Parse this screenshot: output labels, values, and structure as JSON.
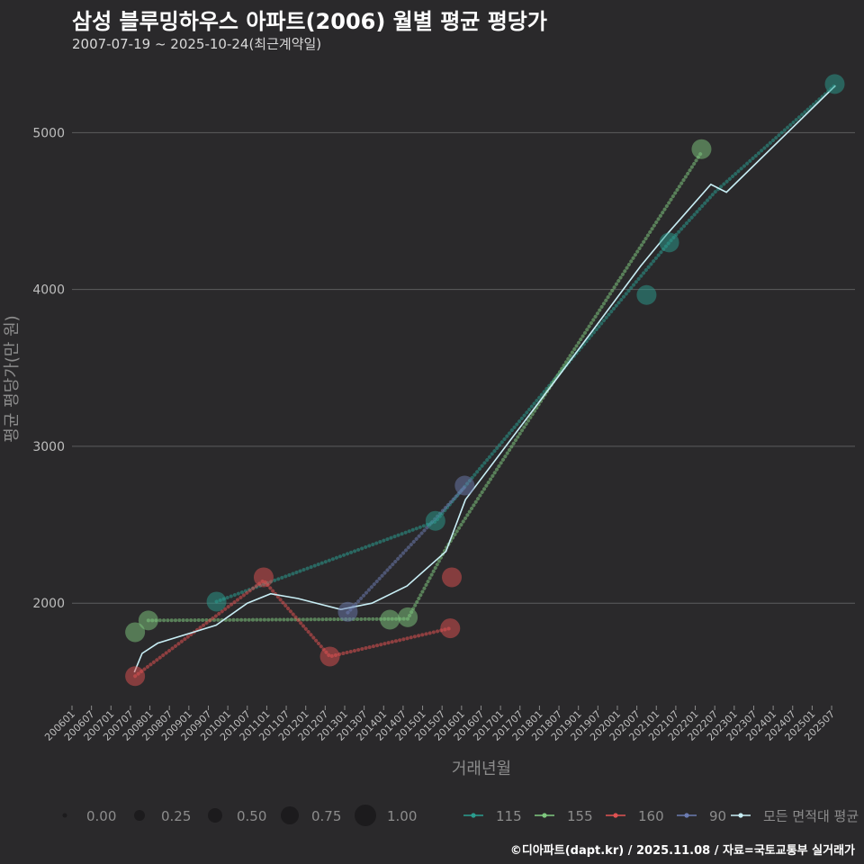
{
  "title": "삼성 블루밍하우스 아파트(2006) 월별 평균 평당가",
  "subtitle": "2007-07-19 ~ 2025-10-24(최근계약일)",
  "caption": "©디아파트(dapt.kr) / 2025.11.08 / 자료=국토교통부 실거래가",
  "chart_data": {
    "type": "line",
    "xlabel": "거래년월",
    "ylabel": "평균 평당가(만 원)",
    "ylim": [
      1370,
      5490
    ],
    "yticks": [
      2000,
      3000,
      4000,
      5000
    ],
    "xlim": [
      2006.0,
      2026.1
    ],
    "xticks": [
      "200601",
      "200607",
      "200701",
      "200707",
      "200801",
      "200807",
      "200901",
      "200907",
      "201001",
      "201007",
      "201101",
      "201107",
      "201201",
      "201207",
      "201301",
      "201307",
      "201401",
      "201407",
      "201501",
      "201507",
      "201601",
      "201607",
      "201701",
      "201707",
      "201801",
      "201807",
      "201901",
      "201907",
      "202001",
      "202007",
      "202101",
      "202107",
      "202201",
      "202207",
      "202301",
      "202307",
      "202401",
      "202407",
      "202501",
      "202507"
    ],
    "grid": true,
    "size_legend": {
      "labels": [
        "0.00",
        "0.25",
        "0.50",
        "0.75",
        "1.00"
      ]
    },
    "series": [
      {
        "name": "115",
        "color": "#2a9d8f",
        "points": [
          [
            2009.71,
            2010
          ],
          [
            2015.33,
            2525
          ],
          [
            2020.75,
            3965
          ],
          [
            2021.33,
            4300
          ],
          [
            2025.58,
            5310
          ]
        ],
        "line": [
          [
            2009.71,
            2010
          ],
          [
            2015.33,
            2520
          ],
          [
            2021.33,
            4300
          ],
          [
            2022.5,
            4620
          ],
          [
            2025.58,
            5300
          ]
        ]
      },
      {
        "name": "155",
        "color": "#7fc97f",
        "points": [
          [
            2007.62,
            1815
          ],
          [
            2007.96,
            1890
          ],
          [
            2014.16,
            1895
          ],
          [
            2014.62,
            1910
          ],
          [
            2022.16,
            4895
          ]
        ],
        "line": [
          [
            2007.96,
            1890
          ],
          [
            2014.62,
            1900
          ],
          [
            2015.6,
            2350
          ],
          [
            2022.16,
            4875
          ]
        ]
      },
      {
        "name": "160",
        "color": "#e05252",
        "points": [
          [
            2007.62,
            1535
          ],
          [
            2010.92,
            2165
          ],
          [
            2012.62,
            1660
          ],
          [
            2015.71,
            1840
          ],
          [
            2015.75,
            2165
          ]
        ],
        "line": [
          [
            2007.62,
            1535
          ],
          [
            2010.92,
            2145
          ],
          [
            2012.62,
            1660
          ],
          [
            2015.71,
            1840
          ]
        ]
      },
      {
        "name": "90",
        "color": "#6b7bb0",
        "points": [
          [
            2013.08,
            1945
          ],
          [
            2016.08,
            2750
          ]
        ],
        "line": [
          [
            2013.08,
            1940
          ],
          [
            2016.08,
            2740
          ]
        ]
      },
      {
        "name": "모든 면적대 평균",
        "color": "#c8eef5",
        "line": [
          [
            2007.6,
            1560
          ],
          [
            2007.8,
            1680
          ],
          [
            2008.2,
            1745
          ],
          [
            2009.7,
            1860
          ],
          [
            2010.5,
            2000
          ],
          [
            2011.1,
            2060
          ],
          [
            2011.8,
            2030
          ],
          [
            2012.9,
            1960
          ],
          [
            2013.7,
            2000
          ],
          [
            2014.6,
            2110
          ],
          [
            2015.6,
            2330
          ],
          [
            2016.1,
            2660
          ],
          [
            2018.5,
            3450
          ],
          [
            2020.6,
            4150
          ],
          [
            2021.3,
            4360
          ],
          [
            2022.4,
            4670
          ],
          [
            2022.8,
            4620
          ],
          [
            2025.6,
            5300
          ]
        ]
      }
    ]
  }
}
